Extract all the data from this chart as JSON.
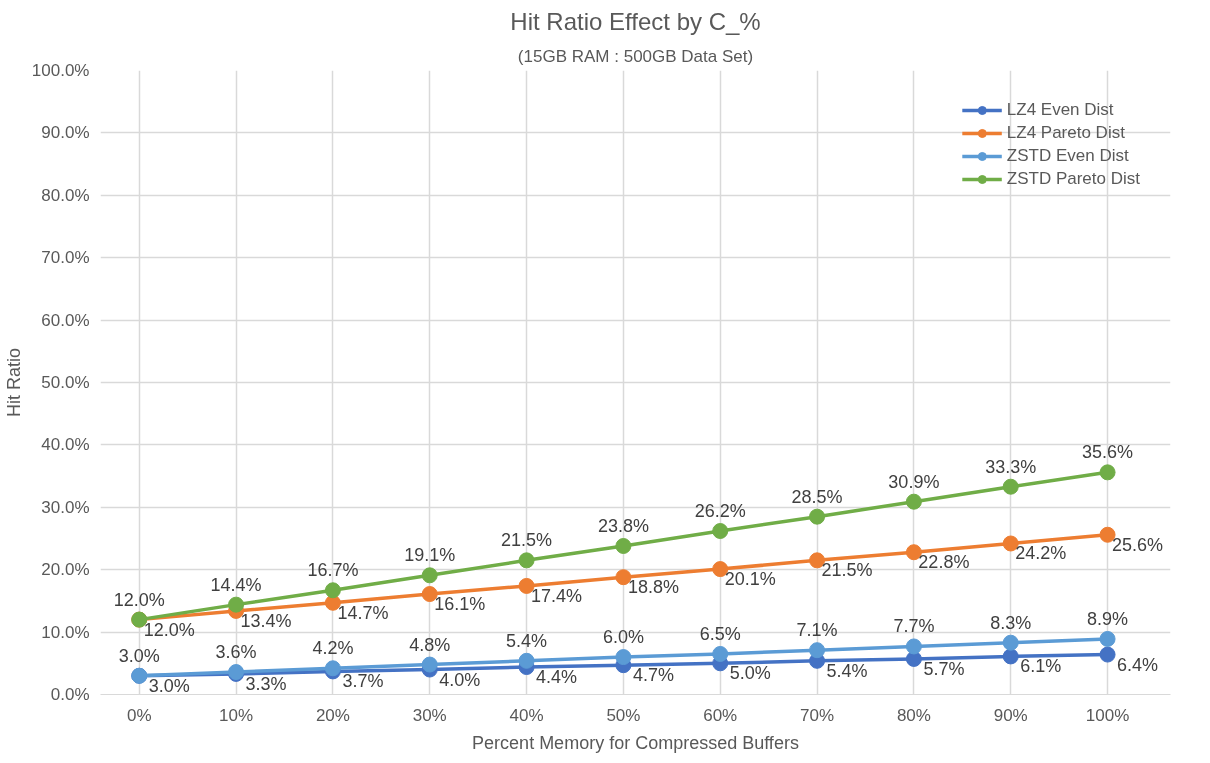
{
  "chart_data": {
    "type": "line",
    "title": "Hit Ratio Effect by C_%",
    "subtitle": "(15GB RAM : 500GB Data Set)",
    "xlabel": "Percent Memory for Compressed Buffers",
    "ylabel": "Hit Ratio",
    "categories": [
      "0%",
      "10%",
      "20%",
      "30%",
      "40%",
      "50%",
      "60%",
      "70%",
      "80%",
      "90%",
      "100%"
    ],
    "series": [
      {
        "name": "LZ4 Even Dist",
        "color": "#4472c4",
        "values": [
          3.0,
          3.3,
          3.7,
          4.0,
          4.4,
          4.7,
          5.0,
          5.4,
          5.7,
          6.1,
          6.4
        ],
        "value_labels": [
          "3.0%",
          "3.3%",
          "3.7%",
          "4.0%",
          "4.4%",
          "4.7%",
          "5.0%",
          "5.4%",
          "5.7%",
          "6.1%",
          "6.4%"
        ]
      },
      {
        "name": "LZ4 Pareto Dist",
        "color": "#ed7d31",
        "values": [
          12.0,
          13.4,
          14.7,
          16.1,
          17.4,
          18.8,
          20.1,
          21.5,
          22.8,
          24.2,
          25.6
        ],
        "value_labels": [
          "12.0%",
          "13.4%",
          "14.7%",
          "16.1%",
          "17.4%",
          "18.8%",
          "20.1%",
          "21.5%",
          "22.8%",
          "24.2%",
          "25.6%"
        ]
      },
      {
        "name": "ZSTD Even Dist",
        "color": "#5b9bd5",
        "values": [
          3.0,
          3.6,
          4.2,
          4.8,
          5.4,
          6.0,
          6.5,
          7.1,
          7.7,
          8.3,
          8.9
        ],
        "value_labels": [
          "3.0%",
          "3.6%",
          "4.2%",
          "4.8%",
          "5.4%",
          "6.0%",
          "6.5%",
          "7.1%",
          "7.7%",
          "8.3%",
          "8.9%"
        ]
      },
      {
        "name": "ZSTD Pareto Dist",
        "color": "#70ad47",
        "values": [
          12.0,
          14.4,
          16.7,
          19.1,
          21.5,
          23.8,
          26.2,
          28.5,
          30.9,
          33.3,
          35.6
        ],
        "value_labels": [
          "12.0%",
          "14.4%",
          "16.7%",
          "19.1%",
          "21.5%",
          "23.8%",
          "26.2%",
          "28.5%",
          "30.9%",
          "33.3%",
          "35.6%"
        ]
      }
    ],
    "ylim": [
      0,
      100
    ],
    "yticks": [
      {
        "value": 0,
        "label": "0.0%"
      },
      {
        "value": 10,
        "label": "10.0%"
      },
      {
        "value": 20,
        "label": "20.0%"
      },
      {
        "value": 30,
        "label": "30.0%"
      },
      {
        "value": 40,
        "label": "40.0%"
      },
      {
        "value": 50,
        "label": "50.0%"
      },
      {
        "value": 60,
        "label": "60.0%"
      },
      {
        "value": 70,
        "label": "70.0%"
      },
      {
        "value": 80,
        "label": "80.0%"
      },
      {
        "value": 90,
        "label": "90.0%"
      },
      {
        "value": 100,
        "label": "100.0%"
      }
    ],
    "grid": true,
    "legend": "top right",
    "marker": "circle",
    "line_style": "solid"
  }
}
